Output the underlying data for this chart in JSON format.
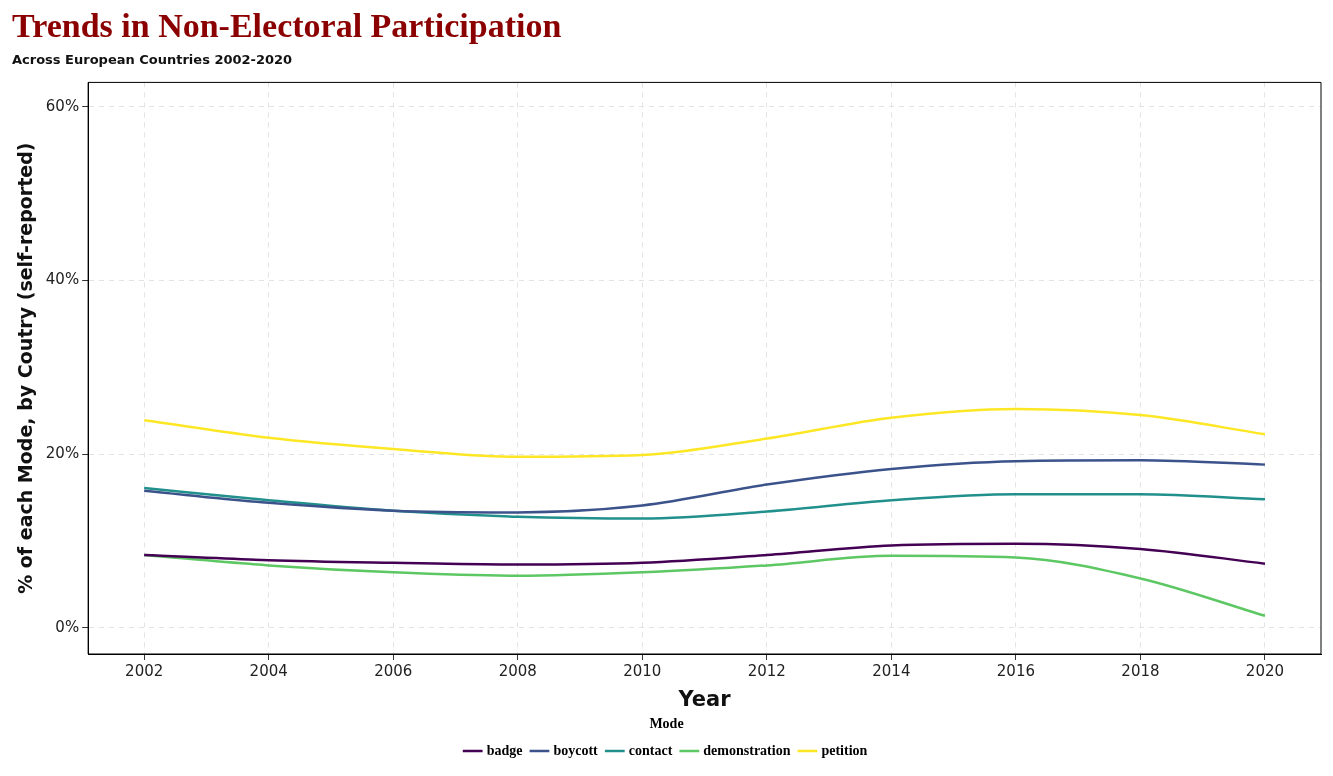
{
  "chart_data": {
    "type": "line",
    "title": "Trends in Non-Electoral Participation",
    "subtitle": "Across European Countries 2002-2020",
    "xlabel": "Year",
    "ylabel": "% of each Mode, by Coutry (self-reported)",
    "legend_title": "Mode",
    "x": [
      2002,
      2004,
      2006,
      2008,
      2010,
      2012,
      2014,
      2016,
      2018,
      2020
    ],
    "series": [
      {
        "name": "badge",
        "color": "#440154",
        "values": [
          8.4,
          7.8,
          7.5,
          7.3,
          7.5,
          8.4,
          9.5,
          9.7,
          9.1,
          7.4
        ]
      },
      {
        "name": "boycott",
        "color": "#3b528b",
        "values": [
          15.8,
          14.4,
          13.5,
          13.3,
          14.1,
          16.5,
          18.3,
          19.2,
          19.3,
          18.8
        ]
      },
      {
        "name": "contact",
        "color": "#21908c",
        "values": [
          16.1,
          14.7,
          13.5,
          12.8,
          12.6,
          13.4,
          14.7,
          15.4,
          15.4,
          14.8
        ]
      },
      {
        "name": "demonstration",
        "color": "#5dc863",
        "values": [
          8.4,
          7.2,
          6.4,
          6.0,
          6.4,
          7.2,
          8.3,
          8.1,
          5.7,
          1.4
        ]
      },
      {
        "name": "petition",
        "color": "#fde725",
        "values": [
          23.9,
          21.9,
          20.6,
          19.7,
          19.9,
          21.8,
          24.2,
          25.2,
          24.5,
          22.3
        ]
      }
    ],
    "xlim": [
      2001.1,
      2020.9
    ],
    "xticks": [
      2002,
      2004,
      2006,
      2008,
      2010,
      2012,
      2014,
      2016,
      2018,
      2020
    ],
    "ylim": [
      -3,
      62.8
    ],
    "yticks": [
      {
        "value": 0,
        "label": "0%"
      },
      {
        "value": 20,
        "label": "20%"
      },
      {
        "value": 40,
        "label": "40%"
      },
      {
        "value": 60,
        "label": "60%"
      }
    ],
    "grid": true,
    "legend": "bottom",
    "line_style": "solid",
    "marker": "none"
  }
}
